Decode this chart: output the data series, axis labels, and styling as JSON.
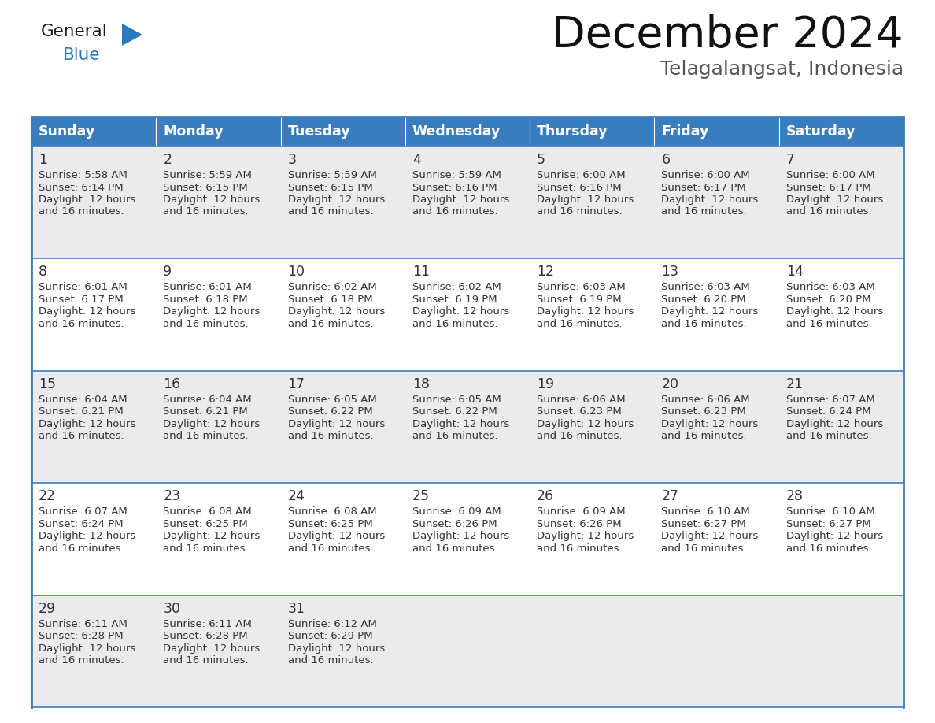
{
  "title": "December 2024",
  "subtitle": "Telagalangsat, Indonesia",
  "header_bg_color": "#3a7dbf",
  "header_text_color": "#ffffff",
  "cell_bg_light": "#ebebeb",
  "cell_bg_white": "#ffffff",
  "border_color": "#3a7dbf",
  "text_color": "#333333",
  "days_of_week": [
    "Sunday",
    "Monday",
    "Tuesday",
    "Wednesday",
    "Thursday",
    "Friday",
    "Saturday"
  ],
  "logo_general_color": "#1a1a1a",
  "logo_blue_color": "#2a7abf",
  "logo_triangle_color": "#2a7abf",
  "weeks": [
    [
      {
        "day": 1,
        "sunrise": "5:58 AM",
        "sunset": "6:14 PM",
        "daylight_line1": "Daylight: 12 hours",
        "daylight_line2": "and 16 minutes."
      },
      {
        "day": 2,
        "sunrise": "5:59 AM",
        "sunset": "6:15 PM",
        "daylight_line1": "Daylight: 12 hours",
        "daylight_line2": "and 16 minutes."
      },
      {
        "day": 3,
        "sunrise": "5:59 AM",
        "sunset": "6:15 PM",
        "daylight_line1": "Daylight: 12 hours",
        "daylight_line2": "and 16 minutes."
      },
      {
        "day": 4,
        "sunrise": "5:59 AM",
        "sunset": "6:16 PM",
        "daylight_line1": "Daylight: 12 hours",
        "daylight_line2": "and 16 minutes."
      },
      {
        "day": 5,
        "sunrise": "6:00 AM",
        "sunset": "6:16 PM",
        "daylight_line1": "Daylight: 12 hours",
        "daylight_line2": "and 16 minutes."
      },
      {
        "day": 6,
        "sunrise": "6:00 AM",
        "sunset": "6:17 PM",
        "daylight_line1": "Daylight: 12 hours",
        "daylight_line2": "and 16 minutes."
      },
      {
        "day": 7,
        "sunrise": "6:00 AM",
        "sunset": "6:17 PM",
        "daylight_line1": "Daylight: 12 hours",
        "daylight_line2": "and 16 minutes."
      }
    ],
    [
      {
        "day": 8,
        "sunrise": "6:01 AM",
        "sunset": "6:17 PM",
        "daylight_line1": "Daylight: 12 hours",
        "daylight_line2": "and 16 minutes."
      },
      {
        "day": 9,
        "sunrise": "6:01 AM",
        "sunset": "6:18 PM",
        "daylight_line1": "Daylight: 12 hours",
        "daylight_line2": "and 16 minutes."
      },
      {
        "day": 10,
        "sunrise": "6:02 AM",
        "sunset": "6:18 PM",
        "daylight_line1": "Daylight: 12 hours",
        "daylight_line2": "and 16 minutes."
      },
      {
        "day": 11,
        "sunrise": "6:02 AM",
        "sunset": "6:19 PM",
        "daylight_line1": "Daylight: 12 hours",
        "daylight_line2": "and 16 minutes."
      },
      {
        "day": 12,
        "sunrise": "6:03 AM",
        "sunset": "6:19 PM",
        "daylight_line1": "Daylight: 12 hours",
        "daylight_line2": "and 16 minutes."
      },
      {
        "day": 13,
        "sunrise": "6:03 AM",
        "sunset": "6:20 PM",
        "daylight_line1": "Daylight: 12 hours",
        "daylight_line2": "and 16 minutes."
      },
      {
        "day": 14,
        "sunrise": "6:03 AM",
        "sunset": "6:20 PM",
        "daylight_line1": "Daylight: 12 hours",
        "daylight_line2": "and 16 minutes."
      }
    ],
    [
      {
        "day": 15,
        "sunrise": "6:04 AM",
        "sunset": "6:21 PM",
        "daylight_line1": "Daylight: 12 hours",
        "daylight_line2": "and 16 minutes."
      },
      {
        "day": 16,
        "sunrise": "6:04 AM",
        "sunset": "6:21 PM",
        "daylight_line1": "Daylight: 12 hours",
        "daylight_line2": "and 16 minutes."
      },
      {
        "day": 17,
        "sunrise": "6:05 AM",
        "sunset": "6:22 PM",
        "daylight_line1": "Daylight: 12 hours",
        "daylight_line2": "and 16 minutes."
      },
      {
        "day": 18,
        "sunrise": "6:05 AM",
        "sunset": "6:22 PM",
        "daylight_line1": "Daylight: 12 hours",
        "daylight_line2": "and 16 minutes."
      },
      {
        "day": 19,
        "sunrise": "6:06 AM",
        "sunset": "6:23 PM",
        "daylight_line1": "Daylight: 12 hours",
        "daylight_line2": "and 16 minutes."
      },
      {
        "day": 20,
        "sunrise": "6:06 AM",
        "sunset": "6:23 PM",
        "daylight_line1": "Daylight: 12 hours",
        "daylight_line2": "and 16 minutes."
      },
      {
        "day": 21,
        "sunrise": "6:07 AM",
        "sunset": "6:24 PM",
        "daylight_line1": "Daylight: 12 hours",
        "daylight_line2": "and 16 minutes."
      }
    ],
    [
      {
        "day": 22,
        "sunrise": "6:07 AM",
        "sunset": "6:24 PM",
        "daylight_line1": "Daylight: 12 hours",
        "daylight_line2": "and 16 minutes."
      },
      {
        "day": 23,
        "sunrise": "6:08 AM",
        "sunset": "6:25 PM",
        "daylight_line1": "Daylight: 12 hours",
        "daylight_line2": "and 16 minutes."
      },
      {
        "day": 24,
        "sunrise": "6:08 AM",
        "sunset": "6:25 PM",
        "daylight_line1": "Daylight: 12 hours",
        "daylight_line2": "and 16 minutes."
      },
      {
        "day": 25,
        "sunrise": "6:09 AM",
        "sunset": "6:26 PM",
        "daylight_line1": "Daylight: 12 hours",
        "daylight_line2": "and 16 minutes."
      },
      {
        "day": 26,
        "sunrise": "6:09 AM",
        "sunset": "6:26 PM",
        "daylight_line1": "Daylight: 12 hours",
        "daylight_line2": "and 16 minutes."
      },
      {
        "day": 27,
        "sunrise": "6:10 AM",
        "sunset": "6:27 PM",
        "daylight_line1": "Daylight: 12 hours",
        "daylight_line2": "and 16 minutes."
      },
      {
        "day": 28,
        "sunrise": "6:10 AM",
        "sunset": "6:27 PM",
        "daylight_line1": "Daylight: 12 hours",
        "daylight_line2": "and 16 minutes."
      }
    ],
    [
      {
        "day": 29,
        "sunrise": "6:11 AM",
        "sunset": "6:28 PM",
        "daylight_line1": "Daylight: 12 hours",
        "daylight_line2": "and 16 minutes."
      },
      {
        "day": 30,
        "sunrise": "6:11 AM",
        "sunset": "6:28 PM",
        "daylight_line1": "Daylight: 12 hours",
        "daylight_line2": "and 16 minutes."
      },
      {
        "day": 31,
        "sunrise": "6:12 AM",
        "sunset": "6:29 PM",
        "daylight_line1": "Daylight: 12 hours",
        "daylight_line2": "and 16 minutes."
      },
      null,
      null,
      null,
      null
    ]
  ]
}
